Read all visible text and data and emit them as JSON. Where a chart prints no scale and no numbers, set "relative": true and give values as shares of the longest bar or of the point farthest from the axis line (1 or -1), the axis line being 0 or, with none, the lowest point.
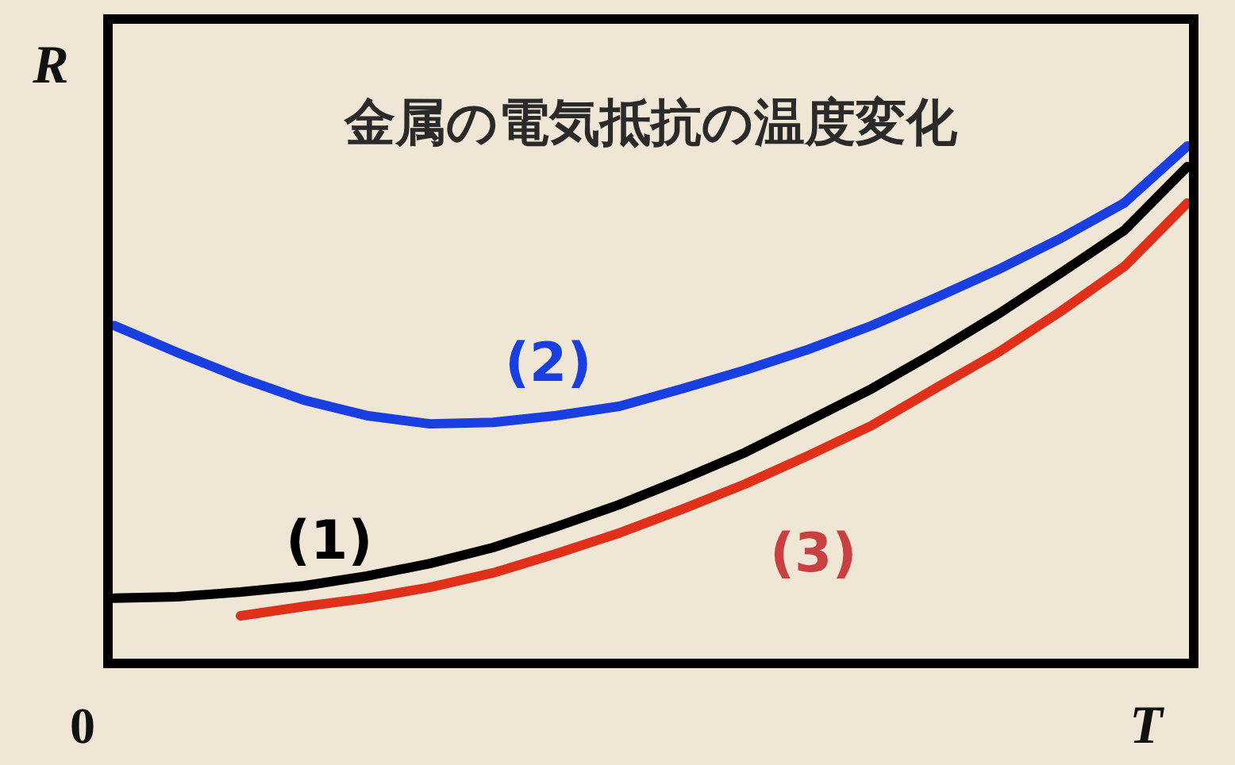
{
  "chart_data": {
    "type": "line",
    "title": "金属の電気抵抗の温度変化",
    "xlabel": "T",
    "ylabel": "R",
    "annotations": [
      "0"
    ],
    "relative": true,
    "legend": false,
    "grid": false,
    "marker": "none",
    "line_style": "solid",
    "categories": [
      null,
      null,
      null,
      null,
      null,
      null,
      null,
      null,
      null,
      null,
      null,
      null,
      null,
      null,
      null,
      null,
      null,
      null
    ],
    "series": [
      {
        "name": "(1)",
        "color": "#000000",
        "values": [
          0.126,
          0.129,
          0.138,
          0.15,
          0.169,
          0.193,
          0.224,
          0.264,
          0.307,
          0.356,
          0.408,
          0.469,
          0.531,
          0.601,
          0.675,
          0.755,
          0.837,
          0.96
        ]
      },
      {
        "name": "(2)",
        "color": "#1a3fe0",
        "values": [
          0.653,
          0.601,
          0.552,
          0.509,
          0.479,
          0.463,
          0.466,
          0.479,
          0.497,
          0.531,
          0.567,
          0.607,
          0.653,
          0.706,
          0.761,
          0.822,
          0.89,
          1.0
        ]
      },
      {
        "name": "(3)",
        "color": "#e0301a",
        "values": [
          null,
          null,
          0.092,
          0.11,
          0.126,
          0.147,
          0.175,
          0.212,
          0.252,
          0.298,
          0.347,
          0.402,
          0.46,
          0.531,
          0.601,
          0.681,
          0.767,
          0.89
        ]
      }
    ]
  }
}
